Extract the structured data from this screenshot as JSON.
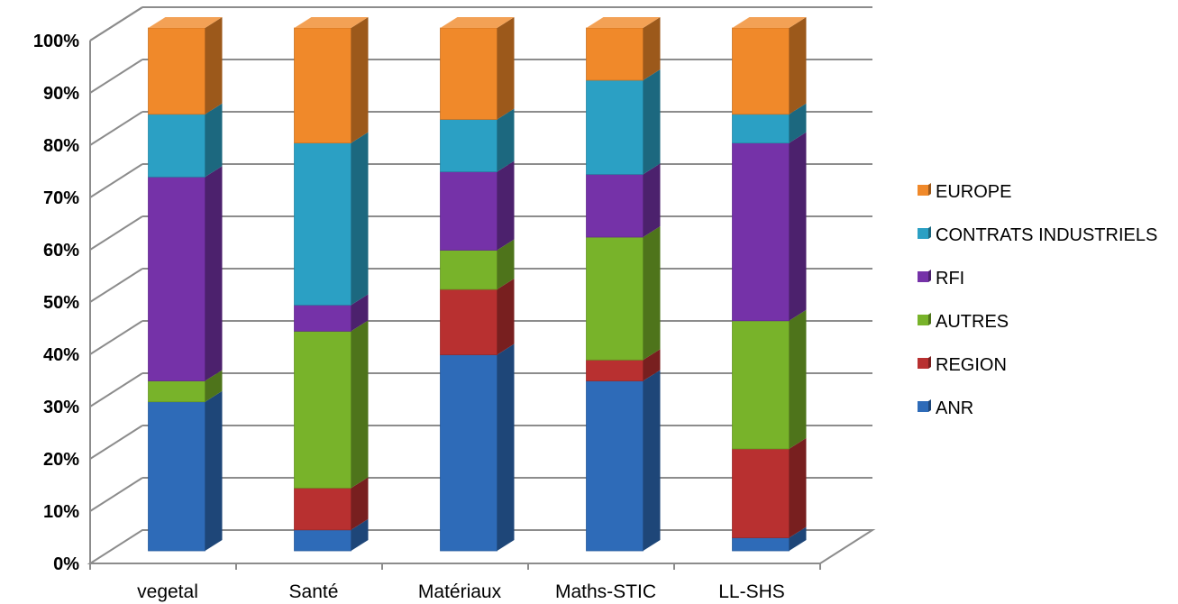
{
  "chart_data": {
    "type": "bar",
    "stacked": true,
    "percent": true,
    "three_d": true,
    "categories": [
      "vegetal",
      "Santé",
      "Matériaux",
      "Maths-STIC",
      "LL-SHS"
    ],
    "series": [
      {
        "name": "ANR",
        "color": "#2e6bb8",
        "values": [
          28.5,
          4,
          37.5,
          32.5,
          2.5
        ]
      },
      {
        "name": "REGION",
        "color": "#b83030",
        "values": [
          0,
          8,
          12.5,
          4,
          17
        ]
      },
      {
        "name": "AUTRES",
        "color": "#78b32a",
        "values": [
          4,
          30,
          7.5,
          23.5,
          24.5
        ]
      },
      {
        "name": "RFI",
        "color": "#7532a8",
        "values": [
          39,
          5,
          15,
          12,
          34
        ]
      },
      {
        "name": "CONTRATS INDUSTRIELS",
        "color": "#2ba0c4",
        "values": [
          12,
          31,
          10,
          18,
          5.5
        ]
      },
      {
        "name": "EUROPE",
        "color": "#f0892a",
        "values": [
          16.5,
          22,
          17.5,
          10,
          16.5
        ]
      }
    ],
    "y_ticks": [
      "0%",
      "10%",
      "20%",
      "30%",
      "40%",
      "50%",
      "60%",
      "70%",
      "80%",
      "90%",
      "100%"
    ],
    "ylim": [
      0,
      100
    ],
    "grid": true,
    "legend_position": "right",
    "legend_order": [
      "EUROPE",
      "CONTRATS INDUSTRIELS",
      "RFI",
      "AUTRES",
      "REGION",
      "ANR"
    ]
  }
}
